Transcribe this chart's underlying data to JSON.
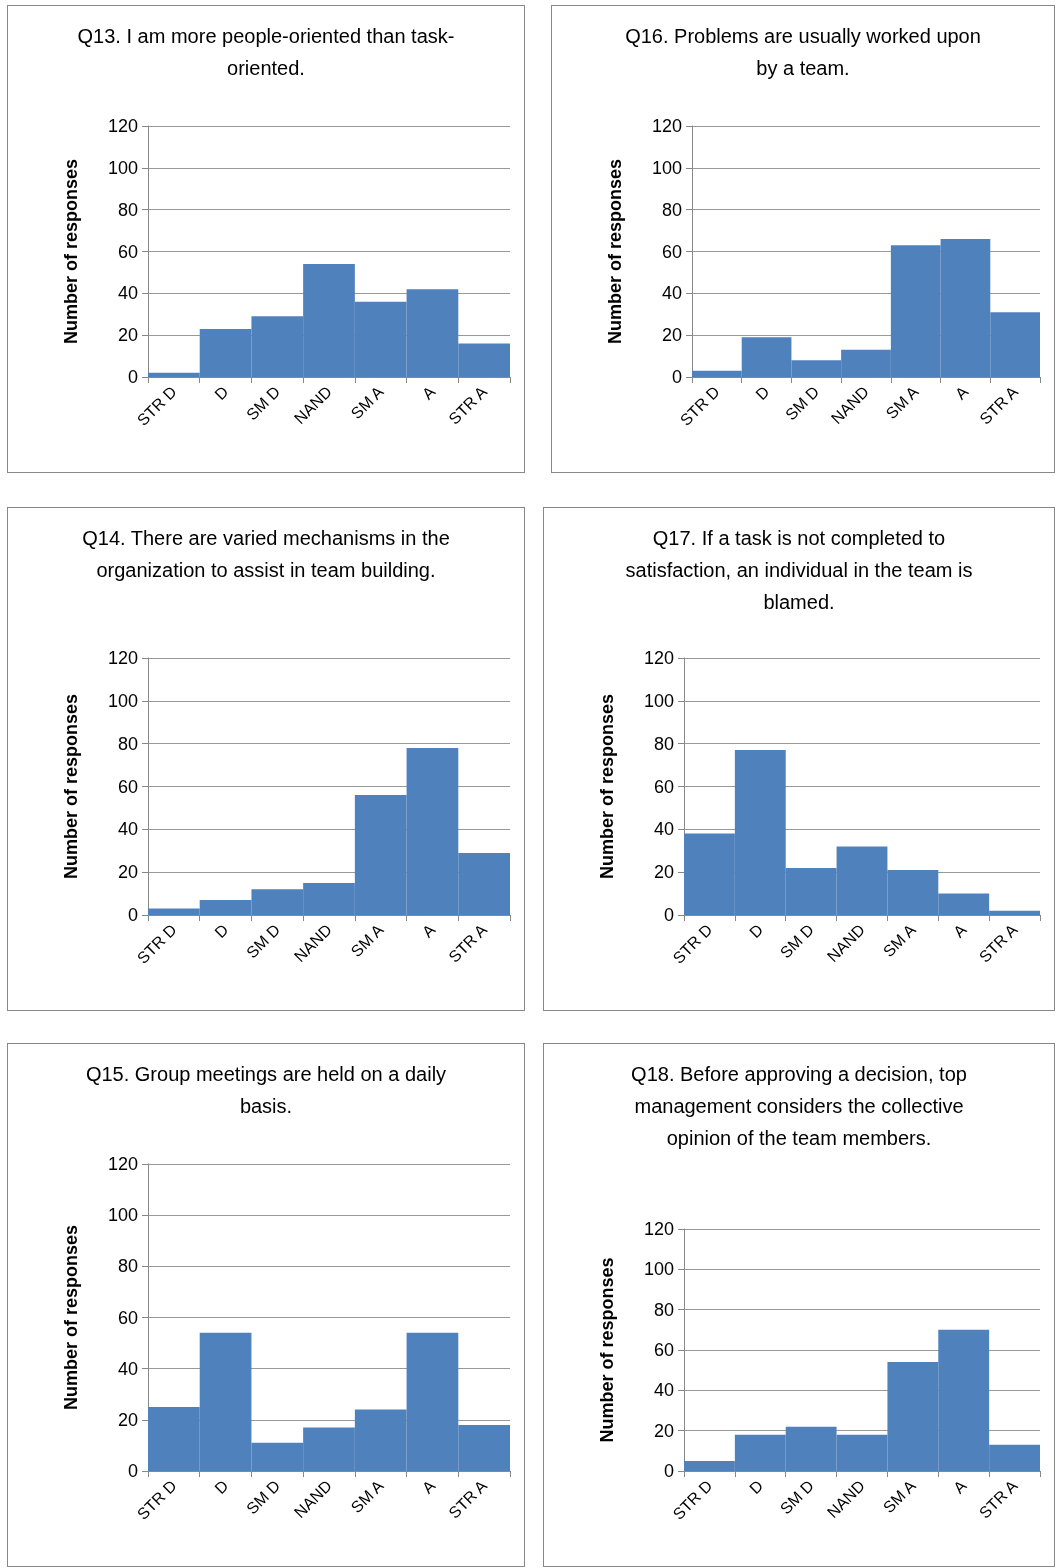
{
  "chart_data": [
    {
      "type": "bar",
      "title": "Q13. I am more people-oriented than task-oriented.",
      "ylabel": "Number of responses",
      "categories": [
        "STR D",
        "D",
        "SM D",
        "NAND",
        "SM A",
        "A",
        "STR A"
      ],
      "values": [
        2,
        23,
        29,
        54,
        36,
        42,
        16
      ],
      "color": "#4f81bd",
      "ylim": [
        0,
        120
      ],
      "yticks": [
        0,
        20,
        40,
        60,
        80,
        100,
        120
      ],
      "grid": "y"
    },
    {
      "type": "bar",
      "title": "Q16. Problems are usually worked upon by a team.",
      "ylabel": "Number of responses",
      "categories": [
        "STR D",
        "D",
        "SM D",
        "NAND",
        "SM A",
        "A",
        "STR A"
      ],
      "values": [
        3,
        19,
        8,
        13,
        63,
        66,
        31
      ],
      "color": "#4f81bd",
      "ylim": [
        0,
        120
      ],
      "yticks": [
        0,
        20,
        40,
        60,
        80,
        100,
        120
      ],
      "grid": "y"
    },
    {
      "type": "bar",
      "title": "Q14. There are varied mechanisms in the organization to assist in team building.",
      "ylabel": "Number of responses",
      "categories": [
        "STR D",
        "D",
        "SM D",
        "NAND",
        "SM A",
        "A",
        "STR A"
      ],
      "values": [
        3,
        7,
        12,
        15,
        56,
        78,
        29
      ],
      "color": "#4f81bd",
      "ylim": [
        0,
        120
      ],
      "yticks": [
        0,
        20,
        40,
        60,
        80,
        100,
        120
      ],
      "grid": "y"
    },
    {
      "type": "bar",
      "title": "Q17. If a task is not completed to satisfaction, an individual in the team is blamed.",
      "ylabel": "Number of responses",
      "categories": [
        "STR D",
        "D",
        "SM D",
        "NAND",
        "SM A",
        "A",
        "STR A"
      ],
      "values": [
        38,
        77,
        22,
        32,
        21,
        10,
        2
      ],
      "color": "#4f81bd",
      "ylim": [
        0,
        120
      ],
      "yticks": [
        0,
        20,
        40,
        60,
        80,
        100,
        120
      ],
      "grid": "y"
    },
    {
      "type": "bar",
      "title": "Q15. Group meetings are held on a daily basis.",
      "ylabel": "Number of responses",
      "categories": [
        "STR D",
        "D",
        "SM D",
        "NAND",
        "SM A",
        "A",
        "STR A"
      ],
      "values": [
        25,
        54,
        11,
        17,
        24,
        54,
        18
      ],
      "color": "#4f81bd",
      "ylim": [
        0,
        120
      ],
      "yticks": [
        0,
        20,
        40,
        60,
        80,
        100,
        120
      ],
      "grid": "y"
    },
    {
      "type": "bar",
      "title": "Q18. Before approving a decision, top management considers the collective opinion of the team members.",
      "ylabel": "Number of responses",
      "categories": [
        "STR D",
        "D",
        "SM D",
        "NAND",
        "SM A",
        "A",
        "STR A"
      ],
      "values": [
        5,
        18,
        22,
        18,
        54,
        70,
        13
      ],
      "color": "#4f81bd",
      "ylim": [
        0,
        120
      ],
      "yticks": [
        0,
        20,
        40,
        60,
        80,
        100,
        120
      ],
      "grid": "y"
    }
  ]
}
